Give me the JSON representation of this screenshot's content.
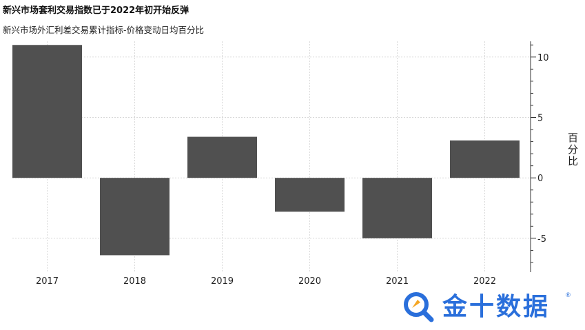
{
  "title": "新兴市场套利交易指数已于2022年初开始反弹",
  "subtitle": "新兴市场外汇利差交易累计指标-价格变动日均百分比",
  "logo": {
    "text": "金十数据",
    "registered": "®",
    "icon": "search-rocket-icon"
  },
  "colors": {
    "bar": "#505050",
    "grid": "#d9d9d9",
    "axis": "#333333",
    "brand": "#2a6fdb"
  },
  "chart_data": {
    "type": "bar",
    "categories": [
      "2017",
      "2018",
      "2019",
      "2020",
      "2021",
      "2022"
    ],
    "values": [
      11.0,
      -6.4,
      3.4,
      -2.8,
      -5.0,
      3.1
    ],
    "ylabel": "百分比",
    "ylim": [
      -7.8,
      11.3
    ],
    "yticks": [
      10,
      5,
      0,
      -5
    ],
    "ytick_labels": [
      "10",
      "5",
      "0",
      "-5"
    ],
    "yaxis_position": "right",
    "grid": true
  }
}
